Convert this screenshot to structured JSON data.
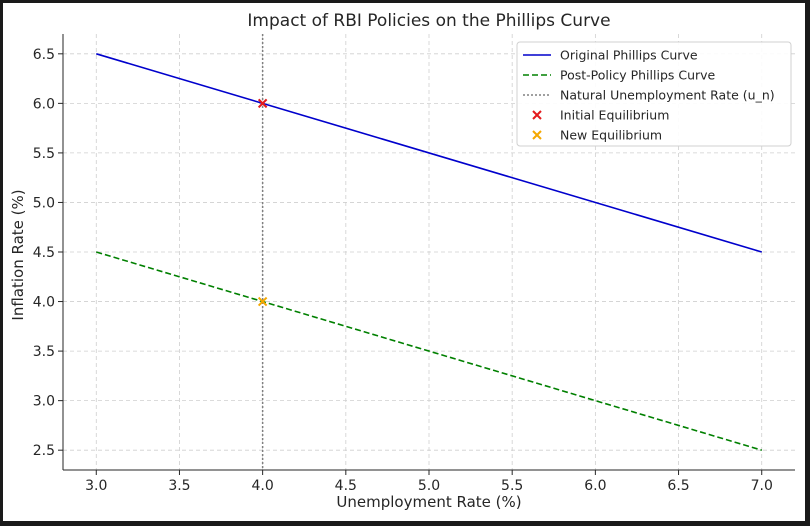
{
  "chart_data": {
    "type": "line",
    "title": "Impact of RBI Policies on the Phillips Curve",
    "xlabel": "Unemployment Rate (%)",
    "ylabel": "Inflation Rate (%)",
    "xlim": [
      2.8,
      7.2
    ],
    "ylim": [
      2.3,
      6.7
    ],
    "xticks": [
      "3.0",
      "3.5",
      "4.0",
      "4.5",
      "5.0",
      "5.5",
      "6.0",
      "6.5",
      "7.0"
    ],
    "yticks": [
      "2.5",
      "3.0",
      "3.5",
      "4.0",
      "4.5",
      "5.0",
      "5.5",
      "6.0",
      "6.5"
    ],
    "grid": true,
    "legend_position": "top-right",
    "series": [
      {
        "name": "Original Phillips Curve",
        "kind": "line",
        "style": "solid",
        "color": "#0000cc",
        "x": [
          3.0,
          7.0
        ],
        "y": [
          6.5,
          4.5
        ]
      },
      {
        "name": "Post-Policy Phillips Curve",
        "kind": "line",
        "style": "dashed",
        "color": "#008000",
        "x": [
          3.0,
          7.0
        ],
        "y": [
          4.5,
          2.5
        ]
      },
      {
        "name": "Natural Unemployment Rate (u_n)",
        "kind": "vline",
        "style": "dotted",
        "color": "#808080",
        "x": 4.0
      },
      {
        "name": "Initial Equilibrium",
        "kind": "marker",
        "color": "#e31a1c",
        "x": [
          4.0
        ],
        "y": [
          6.0
        ]
      },
      {
        "name": "New Equilibrium",
        "kind": "marker",
        "color": "#f5a800",
        "x": [
          4.0
        ],
        "y": [
          4.0
        ]
      }
    ]
  }
}
